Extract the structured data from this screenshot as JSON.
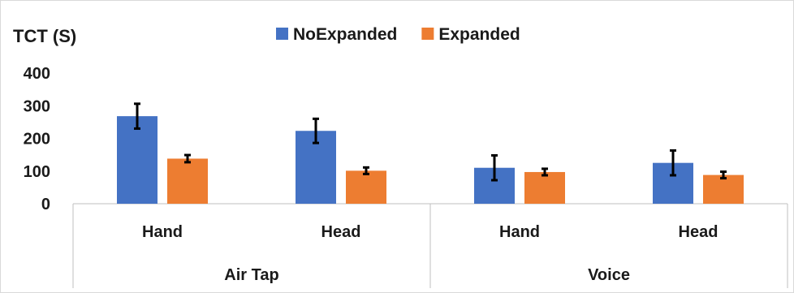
{
  "chart_data": {
    "type": "bar",
    "title": "",
    "ylabel": "TCT (S)",
    "xlabel": "",
    "ylim": [
      0,
      400
    ],
    "yticks": [
      0,
      100,
      200,
      300,
      400
    ],
    "grid": false,
    "legend_position": "top",
    "groups": [
      {
        "label": "Air Tap",
        "categories": [
          "Hand",
          "Head"
        ]
      },
      {
        "label": "Voice",
        "categories": [
          "Hand",
          "Head"
        ]
      }
    ],
    "categories": [
      "Hand",
      "Head",
      "Hand",
      "Head"
    ],
    "series": [
      {
        "name": "NoExpanded",
        "color": "#4472C4",
        "values": [
          268,
          223,
          110,
          125
        ],
        "error": [
          38,
          37,
          38,
          38
        ]
      },
      {
        "name": "Expanded",
        "color": "#ED7D31",
        "values": [
          138,
          101,
          97,
          88
        ],
        "error": [
          11,
          10,
          10,
          10
        ]
      }
    ]
  }
}
